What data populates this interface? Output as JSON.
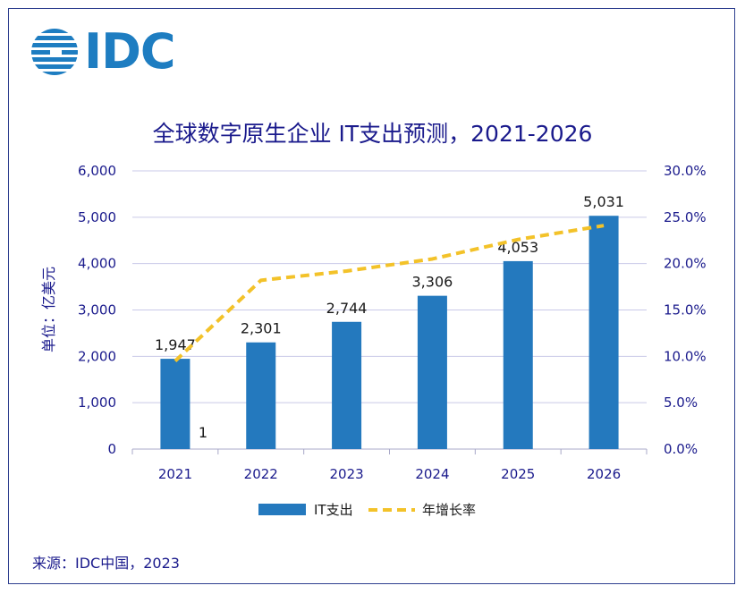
{
  "logo": {
    "text": "IDC"
  },
  "source": "来源：IDC中国，2023",
  "colors": {
    "bar": "#2479be",
    "line": "#f3c229",
    "text": "#1a1a8c",
    "grid": "#c9c9e8",
    "border": "#2e3f8f",
    "logo": "#1e7dc1"
  },
  "chart_data": {
    "type": "bar",
    "title": "全球数字原生企业 IT支出预测，2021-2026",
    "ylabel": "单位：亿美元",
    "categories": [
      "2021",
      "2022",
      "2023",
      "2024",
      "2025",
      "2026"
    ],
    "ylim": [
      0,
      6000
    ],
    "y_ticks": [
      "0",
      "1,000",
      "2,000",
      "3,000",
      "4,000",
      "5,000",
      "6,000"
    ],
    "y2lim": [
      0,
      30
    ],
    "y2_ticks": [
      "0.0%",
      "5.0%",
      "10.0%",
      "15.0%",
      "20.0%",
      "25.0%",
      "30.0%"
    ],
    "grid": true,
    "legend_position": "bottom",
    "series": [
      {
        "name": "IT支出",
        "type": "bar",
        "axis": "left",
        "values": [
          1947,
          2301,
          2744,
          3306,
          4053,
          5031
        ],
        "labels": [
          "1,947",
          "2,301",
          "2,744",
          "3,306",
          "4,053",
          "5,031"
        ]
      },
      {
        "name": "年增长率",
        "type": "line",
        "style": "dashed",
        "axis": "right",
        "values": [
          9.5,
          18.2,
          19.2,
          20.5,
          22.6,
          24.1
        ]
      }
    ],
    "annotations": [
      {
        "text": "1",
        "category": "2021"
      }
    ]
  }
}
